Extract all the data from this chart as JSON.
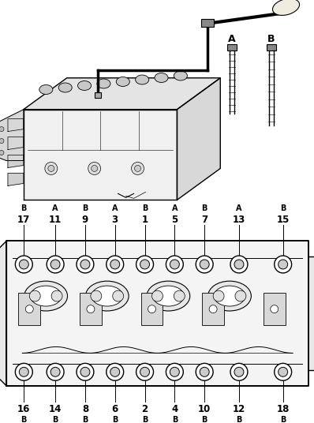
{
  "fig_width": 4.0,
  "fig_height": 5.28,
  "dpi": 100,
  "bg_color": "#ffffff",
  "top_row": [
    {
      "num": 17,
      "type": "B",
      "xf": 0.075
    },
    {
      "num": 11,
      "type": "A",
      "xf": 0.175
    },
    {
      "num": 9,
      "type": "B",
      "xf": 0.27
    },
    {
      "num": 3,
      "type": "A",
      "xf": 0.365
    },
    {
      "num": 1,
      "type": "B",
      "xf": 0.46
    },
    {
      "num": 5,
      "type": "A",
      "xf": 0.555
    },
    {
      "num": 7,
      "type": "B",
      "xf": 0.65
    },
    {
      "num": 13,
      "type": "A",
      "xf": 0.76
    },
    {
      "num": 15,
      "type": "B",
      "xf": 0.9
    }
  ],
  "bottom_row": [
    {
      "num": 16,
      "type": "B",
      "xf": 0.075
    },
    {
      "num": 14,
      "type": "B",
      "xf": 0.175
    },
    {
      "num": 8,
      "type": "B",
      "xf": 0.27
    },
    {
      "num": 6,
      "type": "B",
      "xf": 0.365
    },
    {
      "num": 2,
      "type": "B",
      "xf": 0.46
    },
    {
      "num": 4,
      "type": "B",
      "xf": 0.555
    },
    {
      "num": 10,
      "type": "B",
      "xf": 0.65
    },
    {
      "num": 12,
      "type": "B",
      "xf": 0.76
    },
    {
      "num": 18,
      "type": "B",
      "xf": 0.9
    }
  ],
  "text_color": "#000000",
  "line_color": "#000000",
  "bolt_edge_color": "#000000",
  "font_size_num": 8.5,
  "font_size_type": 7.0
}
